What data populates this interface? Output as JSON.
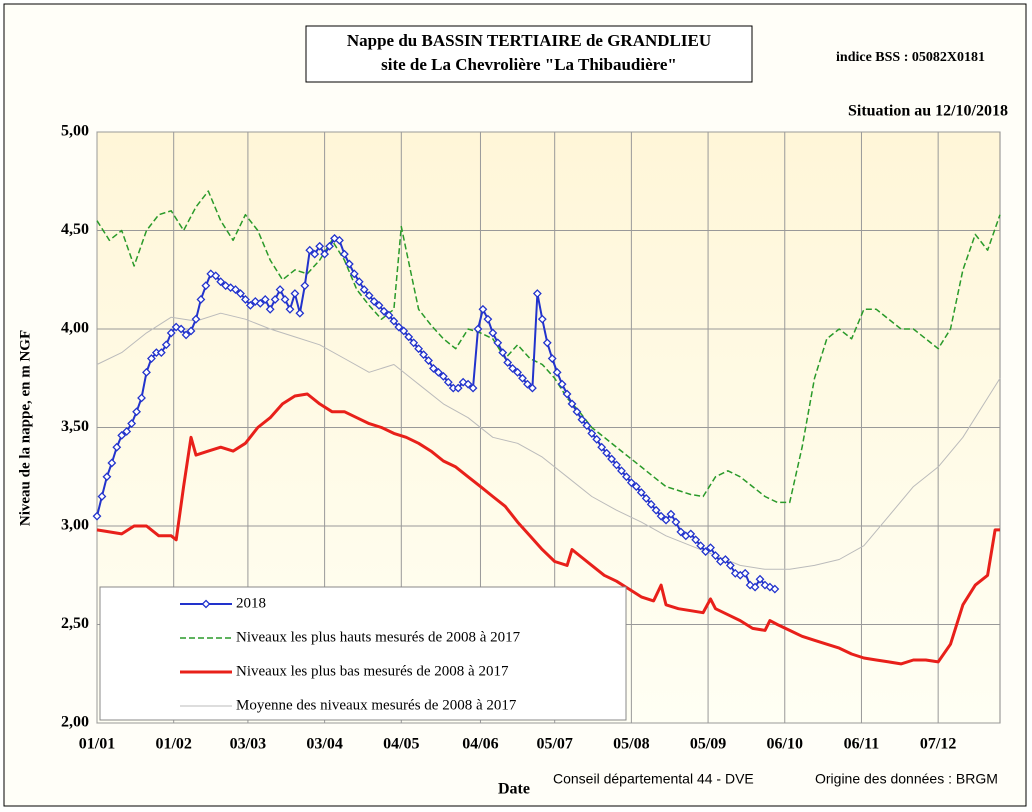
{
  "chart_data": {
    "type": "line",
    "title_lines": [
      "Nappe du BASSIN TERTIAIRE de GRANDLIEU",
      "site de La Chevrolière \"La Thibaudière\""
    ],
    "index_label": "indice BSS : 05082X0181",
    "situation": "Situation au 12/10/2018",
    "ylabel": "Niveau de la nappe, en m NGF",
    "xlabel": "Date",
    "credits": [
      "Conseil départemental 44 - DVE",
      "Origine des données : BRGM"
    ],
    "xlim": [
      0,
      365
    ],
    "xticks": [
      {
        "value": 0,
        "label": "01/01"
      },
      {
        "value": 31,
        "label": "01/02"
      },
      {
        "value": 61,
        "label": "03/03"
      },
      {
        "value": 92,
        "label": "03/04"
      },
      {
        "value": 123,
        "label": "04/05"
      },
      {
        "value": 155,
        "label": "04/06"
      },
      {
        "value": 185,
        "label": "05/07"
      },
      {
        "value": 216,
        "label": "05/08"
      },
      {
        "value": 247,
        "label": "05/09"
      },
      {
        "value": 278,
        "label": "06/10"
      },
      {
        "value": 309,
        "label": "06/11"
      },
      {
        "value": 340,
        "label": "07/12"
      }
    ],
    "ylim": [
      2,
      5
    ],
    "yticks": [
      {
        "value": 2,
        "label": "2,00"
      },
      {
        "value": 2.5,
        "label": "2,50"
      },
      {
        "value": 3,
        "label": "3,00"
      },
      {
        "value": 3.5,
        "label": "3,50"
      },
      {
        "value": 4,
        "label": "4,00"
      },
      {
        "value": 4.5,
        "label": "4,50"
      },
      {
        "value": 5,
        "label": "5,00"
      }
    ],
    "grid": true,
    "legend": "lower left",
    "series": [
      {
        "name": "2018",
        "color": "#2233cc",
        "style": "markers",
        "x": [
          0,
          2,
          4,
          6,
          8,
          10,
          12,
          14,
          16,
          18,
          20,
          22,
          24,
          26,
          28,
          30,
          32,
          34,
          36,
          38,
          40,
          42,
          44,
          46,
          48,
          50,
          52,
          54,
          56,
          58,
          60,
          62,
          64,
          66,
          68,
          70,
          72,
          74,
          76,
          78,
          80,
          82,
          84,
          86,
          88,
          90,
          92,
          94,
          96,
          98,
          100,
          102,
          104,
          106,
          108,
          110,
          112,
          114,
          116,
          118,
          120,
          122,
          124,
          126,
          128,
          130,
          132,
          134,
          136,
          138,
          140,
          142,
          144,
          146,
          148,
          150,
          152,
          154,
          156,
          158,
          160,
          162,
          164,
          166,
          168,
          170,
          172,
          174,
          176,
          178,
          180,
          182,
          184,
          186,
          188,
          190,
          192,
          194,
          196,
          198,
          200,
          202,
          204,
          206,
          208,
          210,
          212,
          214,
          216,
          218,
          220,
          222,
          224,
          226,
          228,
          230,
          232,
          234,
          236,
          238,
          240,
          242,
          244,
          246,
          248,
          250,
          252,
          254,
          256,
          258,
          260,
          262,
          264,
          266,
          268,
          270,
          272,
          274
        ],
        "values": [
          3.05,
          3.15,
          3.25,
          3.32,
          3.4,
          3.46,
          3.48,
          3.52,
          3.58,
          3.65,
          3.78,
          3.85,
          3.88,
          3.88,
          3.92,
          3.98,
          4.01,
          4.0,
          3.97,
          3.99,
          4.05,
          4.15,
          4.22,
          4.28,
          4.27,
          4.24,
          4.22,
          4.21,
          4.2,
          4.18,
          4.15,
          4.12,
          4.14,
          4.13,
          4.15,
          4.1,
          4.15,
          4.2,
          4.15,
          4.1,
          4.18,
          4.08,
          4.22,
          4.4,
          4.38,
          4.42,
          4.38,
          4.42,
          4.46,
          4.45,
          4.38,
          4.33,
          4.28,
          4.24,
          4.2,
          4.17,
          4.14,
          4.12,
          4.09,
          4.07,
          4.04,
          4.01,
          3.99,
          3.96,
          3.93,
          3.9,
          3.87,
          3.84,
          3.8,
          3.78,
          3.76,
          3.73,
          3.7,
          3.7,
          3.73,
          3.72,
          3.7,
          4.0,
          4.1,
          4.05,
          3.98,
          3.93,
          3.88,
          3.83,
          3.8,
          3.78,
          3.75,
          3.72,
          3.7,
          4.18,
          4.05,
          3.93,
          3.85,
          3.78,
          3.72,
          3.67,
          3.62,
          3.58,
          3.54,
          3.51,
          3.47,
          3.44,
          3.4,
          3.37,
          3.34,
          3.31,
          3.28,
          3.25,
          3.22,
          3.2,
          3.17,
          3.14,
          3.11,
          3.08,
          3.05,
          3.03,
          3.06,
          3.02,
          2.97,
          2.95,
          2.96,
          2.93,
          2.9,
          2.87,
          2.89,
          2.85,
          2.82,
          2.83,
          2.8,
          2.76,
          2.75,
          2.76,
          2.7,
          2.69,
          2.73,
          2.7,
          2.69,
          2.68
        ]
      },
      {
        "name": "Niveaux les plus hauts mesurés de 2008 à 2017",
        "color": "#2a9a2a",
        "style": "dashed",
        "x": [
          0,
          5,
          10,
          15,
          20,
          25,
          30,
          35,
          40,
          45,
          50,
          55,
          60,
          65,
          70,
          75,
          80,
          85,
          90,
          95,
          100,
          105,
          110,
          115,
          120,
          123,
          125,
          130,
          135,
          140,
          145,
          150,
          155,
          160,
          165,
          170,
          175,
          180,
          185,
          190,
          195,
          200,
          205,
          210,
          215,
          220,
          225,
          230,
          235,
          240,
          245,
          250,
          255,
          260,
          265,
          270,
          275,
          280,
          285,
          290,
          295,
          300,
          305,
          310,
          315,
          320,
          325,
          330,
          335,
          340,
          345,
          350,
          355,
          360,
          365
        ],
        "values": [
          4.55,
          4.45,
          4.5,
          4.32,
          4.5,
          4.58,
          4.6,
          4.5,
          4.62,
          4.7,
          4.55,
          4.45,
          4.58,
          4.5,
          4.35,
          4.25,
          4.3,
          4.28,
          4.35,
          4.45,
          4.35,
          4.2,
          4.12,
          4.05,
          4.1,
          4.52,
          4.4,
          4.1,
          4.02,
          3.95,
          3.9,
          4.0,
          3.98,
          3.95,
          3.85,
          3.92,
          3.85,
          3.82,
          3.75,
          3.65,
          3.58,
          3.5,
          3.45,
          3.4,
          3.35,
          3.3,
          3.25,
          3.2,
          3.18,
          3.16,
          3.15,
          3.25,
          3.28,
          3.25,
          3.2,
          3.15,
          3.12,
          3.12,
          3.4,
          3.75,
          3.95,
          4.0,
          3.95,
          4.1,
          4.1,
          4.05,
          4.0,
          4.0,
          3.95,
          3.9,
          4.0,
          4.3,
          4.48,
          4.4,
          4.58
        ]
      },
      {
        "name": "Niveaux les plus bas mesurés de 2008 à 2017",
        "color": "#e8201a",
        "style": "thick",
        "x": [
          0,
          5,
          10,
          15,
          20,
          25,
          30,
          32,
          35,
          38,
          40,
          45,
          50,
          55,
          60,
          65,
          70,
          75,
          80,
          85,
          90,
          95,
          100,
          105,
          110,
          115,
          120,
          125,
          130,
          135,
          140,
          145,
          150,
          155,
          160,
          165,
          170,
          175,
          180,
          185,
          190,
          192,
          195,
          200,
          205,
          210,
          215,
          220,
          225,
          228,
          230,
          235,
          240,
          245,
          248,
          250,
          255,
          260,
          265,
          270,
          272,
          275,
          280,
          285,
          290,
          295,
          300,
          305,
          310,
          315,
          320,
          325,
          330,
          335,
          340,
          345,
          350,
          355,
          360,
          363,
          365
        ],
        "values": [
          2.98,
          2.97,
          2.96,
          3.0,
          3.0,
          2.95,
          2.95,
          2.93,
          3.2,
          3.45,
          3.36,
          3.38,
          3.4,
          3.38,
          3.42,
          3.5,
          3.55,
          3.62,
          3.66,
          3.67,
          3.62,
          3.58,
          3.58,
          3.55,
          3.52,
          3.5,
          3.47,
          3.45,
          3.42,
          3.38,
          3.33,
          3.3,
          3.25,
          3.2,
          3.15,
          3.1,
          3.02,
          2.95,
          2.88,
          2.82,
          2.8,
          2.88,
          2.85,
          2.8,
          2.75,
          2.72,
          2.68,
          2.64,
          2.62,
          2.7,
          2.6,
          2.58,
          2.57,
          2.56,
          2.63,
          2.58,
          2.55,
          2.52,
          2.48,
          2.47,
          2.52,
          2.5,
          2.47,
          2.44,
          2.42,
          2.4,
          2.38,
          2.35,
          2.33,
          2.32,
          2.31,
          2.3,
          2.32,
          2.32,
          2.31,
          2.4,
          2.6,
          2.7,
          2.75,
          2.98,
          2.98
        ]
      },
      {
        "name": "Moyenne des niveaux mesurés de 2008 à 2017",
        "color": "#bbbbbb",
        "style": "thin",
        "x": [
          0,
          10,
          20,
          30,
          40,
          50,
          60,
          70,
          80,
          90,
          100,
          110,
          120,
          130,
          140,
          150,
          160,
          170,
          180,
          190,
          200,
          210,
          220,
          230,
          240,
          250,
          260,
          270,
          280,
          290,
          300,
          310,
          320,
          330,
          340,
          350,
          360,
          365
        ],
        "values": [
          3.82,
          3.88,
          3.98,
          4.06,
          4.04,
          4.08,
          4.05,
          4.0,
          3.96,
          3.92,
          3.85,
          3.78,
          3.82,
          3.72,
          3.62,
          3.55,
          3.45,
          3.42,
          3.35,
          3.25,
          3.15,
          3.08,
          3.02,
          2.95,
          2.9,
          2.85,
          2.8,
          2.78,
          2.78,
          2.8,
          2.83,
          2.9,
          3.05,
          3.2,
          3.3,
          3.45,
          3.65,
          3.75
        ]
      }
    ]
  }
}
